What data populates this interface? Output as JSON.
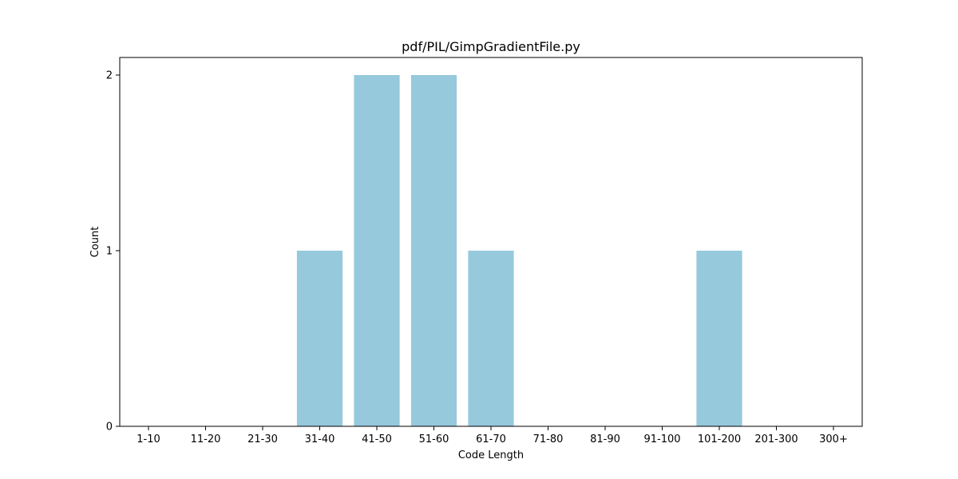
{
  "chart_data": {
    "type": "bar",
    "title": "pdf/PIL/GimpGradientFile.py",
    "xlabel": "Code Length",
    "ylabel": "Count",
    "categories": [
      "1-10",
      "11-20",
      "21-30",
      "31-40",
      "41-50",
      "51-60",
      "61-70",
      "71-80",
      "81-90",
      "91-100",
      "101-200",
      "201-300",
      "300+"
    ],
    "values": [
      0,
      0,
      0,
      1,
      2,
      2,
      1,
      0,
      0,
      0,
      1,
      0,
      0
    ],
    "ylim": [
      0,
      2.1
    ],
    "yticks": [
      0,
      1,
      2
    ],
    "bar_color": "#96c9dc",
    "grid": false,
    "legend": "none"
  }
}
